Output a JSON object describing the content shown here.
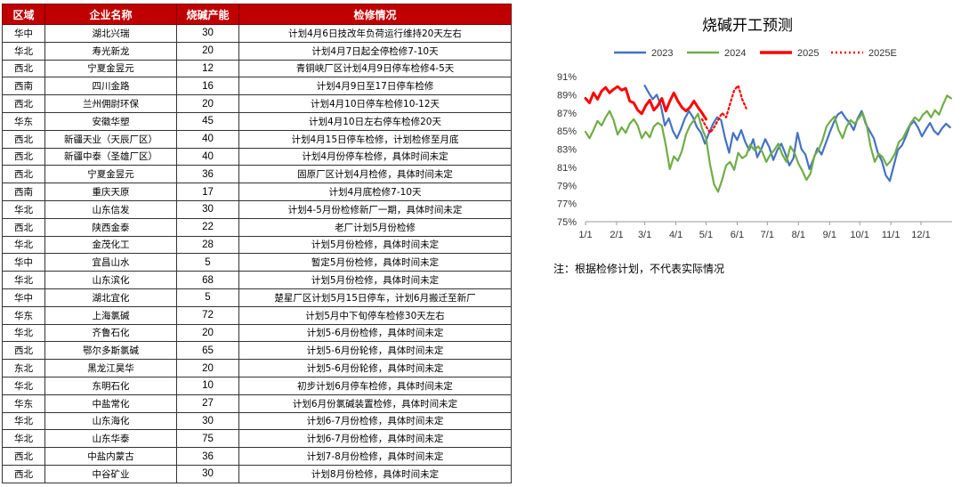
{
  "table": {
    "headers": [
      "区域",
      "企业名称",
      "烧碱产能",
      "检修情况"
    ],
    "rows": [
      [
        "华中",
        "湖北兴瑞",
        "30",
        "计划4月6日技改年负荷运行维持20天左右"
      ],
      [
        "华北",
        "寿光新龙",
        "20",
        "计划4月7日起全停检修7-10天"
      ],
      [
        "西北",
        "宁夏金昱元",
        "12",
        "青铜峡厂区计划4月9日停车检修4-5天"
      ],
      [
        "西南",
        "四川金路",
        "16",
        "计划4月9日至17日停车检修"
      ],
      [
        "西北",
        "兰州佣尉环保",
        "20",
        "计划4月10日停车检修10-12天"
      ],
      [
        "华东",
        "安徽华塑",
        "45",
        "计划4月10日左右停车检修20天"
      ],
      [
        "西北",
        "新疆天业（天辰厂区）",
        "40",
        "计划4月15日停车检修，计划检修至月底"
      ],
      [
        "西北",
        "新疆中泰（圣雄厂区）",
        "40",
        "计划4月份停车检修，具体时间未定"
      ],
      [
        "西北",
        "宁夏金昱元",
        "36",
        "固原厂区计划4月检修，具体时间未定"
      ],
      [
        "西南",
        "重庆天原",
        "17",
        "计划4月底检修7-10天"
      ],
      [
        "华北",
        "山东信发",
        "30",
        "计划4-5月份检修新厂一期，具体时间未定"
      ],
      [
        "西北",
        "陕西金泰",
        "22",
        "老厂计划5月份检修"
      ],
      [
        "华北",
        "金茂化工",
        "28",
        "计划5月份检修，具体时间未定"
      ],
      [
        "华中",
        "宜昌山水",
        "5",
        "暂定5月份检修，具体时间未定"
      ],
      [
        "华北",
        "山东滨化",
        "68",
        "计划5月份检修，具体时间未定"
      ],
      [
        "华中",
        "湖北宜化",
        "5",
        "楚星厂区计划5月15日停车，计划6月搬迁至新厂"
      ],
      [
        "华东",
        "上海氯碱",
        "72",
        "计划5月中下旬停车检修30天左右"
      ],
      [
        "华北",
        "齐鲁石化",
        "20",
        "计划5-6月份检修，具体时间未定"
      ],
      [
        "西北",
        "鄂尔多斯氯碱",
        "65",
        "计划5-6月份轮修，具体时间未定"
      ],
      [
        "东北",
        "黑龙江昊华",
        "20",
        "计划5-6月份轮修，具体时间未定"
      ],
      [
        "华北",
        "东明石化",
        "10",
        "初步计划6月停车检修，具体时间未定"
      ],
      [
        "华东",
        "中盐常化",
        "27",
        "计划6月份氯碱装置检修，具体时间未定"
      ],
      [
        "华北",
        "山东海化",
        "30",
        "计划6-7月份检修，具体时间未定"
      ],
      [
        "华北",
        "山东华泰",
        "75",
        "计划6-7月份检修，具体时间未定"
      ],
      [
        "西北",
        "中盐内蒙古",
        "36",
        "计划7-8月份检修，具体时间未定"
      ],
      [
        "西北",
        "中谷矿业",
        "30",
        "计划8月份检修，具体时间未定"
      ]
    ]
  },
  "note": "注：根据检修计划，不代表实际情况",
  "chart_data": {
    "type": "line",
    "title": "烧碱开工预测",
    "x_ticks": [
      "1/1",
      "2/1",
      "3/1",
      "4/1",
      "5/1",
      "6/1",
      "7/1",
      "8/1",
      "9/1",
      "10/1",
      "11/1",
      "12/1"
    ],
    "y_ticks": [
      "75%",
      "77%",
      "79%",
      "81%",
      "83%",
      "85%",
      "87%",
      "89%",
      "91%"
    ],
    "ylim": [
      75,
      91
    ],
    "x_unit": "day of year",
    "xlim": [
      1,
      366
    ],
    "legend_position": "top",
    "series": [
      {
        "name": "2023",
        "color": "#4472c4",
        "style": "solid",
        "x": [
          60,
          64,
          68,
          72,
          76,
          80,
          84,
          88,
          92,
          96,
          100,
          104,
          108,
          112,
          116,
          120,
          124,
          128,
          132,
          136,
          140,
          144,
          148,
          152,
          156,
          160,
          164,
          168,
          172,
          176,
          180,
          184,
          188,
          192,
          196,
          200,
          204,
          208,
          212,
          216,
          220,
          224,
          228,
          232,
          236,
          240,
          244,
          248,
          252,
          256,
          260,
          264,
          268,
          272,
          276,
          280,
          284,
          288,
          292,
          296,
          300,
          304,
          308,
          312,
          316,
          320,
          324,
          328,
          332,
          336,
          340,
          344,
          348,
          352,
          356,
          360,
          364
        ],
        "y": [
          90.0,
          89.2,
          88.5,
          89.0,
          87.8,
          85.6,
          86.4,
          85.0,
          84.2,
          85.2,
          86.4,
          87.2,
          86.5,
          85.4,
          84.8,
          83.6,
          84.8,
          85.8,
          86.5,
          86.2,
          84.2,
          82.6,
          84.8,
          84.0,
          85.1,
          83.8,
          82.9,
          84.1,
          82.1,
          83.0,
          84.1,
          83.2,
          81.8,
          82.9,
          83.6,
          82.5,
          81.2,
          82.0,
          84.8,
          83.0,
          82.4,
          80.8,
          81.9,
          83.1,
          82.4,
          83.6,
          84.8,
          85.9,
          86.8,
          87.1,
          86.4,
          85.9,
          85.1,
          86.4,
          87.2,
          85.8,
          85.0,
          84.2,
          82.6,
          81.7,
          80.1,
          79.5,
          81.2,
          82.9,
          83.4,
          84.4,
          85.6,
          86.1,
          85.4,
          84.4,
          85.2,
          85.9,
          85.0,
          84.6,
          85.3,
          85.8,
          85.4
        ]
      },
      {
        "name": "2024",
        "color": "#70ad47",
        "style": "solid",
        "x": [
          1,
          5,
          9,
          13,
          17,
          21,
          25,
          29,
          33,
          37,
          41,
          45,
          49,
          53,
          57,
          61,
          65,
          69,
          73,
          77,
          81,
          85,
          89,
          93,
          97,
          101,
          105,
          109,
          113,
          117,
          121,
          125,
          129,
          133,
          137,
          141,
          145,
          149,
          153,
          157,
          161,
          165,
          169,
          173,
          177,
          181,
          185,
          189,
          193,
          197,
          201,
          205,
          209,
          213,
          217,
          221,
          225,
          229,
          233,
          237,
          241,
          245,
          249,
          253,
          257,
          261,
          265,
          269,
          273,
          277,
          281,
          285,
          289,
          293,
          297,
          301,
          305,
          309,
          313,
          317,
          321,
          325,
          329,
          333,
          337,
          341,
          345,
          349,
          353,
          357,
          361,
          365
        ],
        "y": [
          84.9,
          84.2,
          85.1,
          86.1,
          85.6,
          86.5,
          87.2,
          86.2,
          84.6,
          85.4,
          84.8,
          85.8,
          86.3,
          85.6,
          84.2,
          84.9,
          84.3,
          85.5,
          85.9,
          85.6,
          83.4,
          80.8,
          82.2,
          81.7,
          82.8,
          84.6,
          85.6,
          86.2,
          86.9,
          85.3,
          84.2,
          81.3,
          79.1,
          78.3,
          79.6,
          81.2,
          81.6,
          80.7,
          82.6,
          82.0,
          82.3,
          83.5,
          82.9,
          83.3,
          82.7,
          81.6,
          82.4,
          82.9,
          83.6,
          82.4,
          81.6,
          83.3,
          82.6,
          81.4,
          80.6,
          79.6,
          80.3,
          82.3,
          82.9,
          84.0,
          85.5,
          86.1,
          86.6,
          85.1,
          84.2,
          85.5,
          86.2,
          85.8,
          86.4,
          87.0,
          85.6,
          83.2,
          81.6,
          82.5,
          82.1,
          81.2,
          81.7,
          82.5,
          83.8,
          84.2,
          85.1,
          85.9,
          86.5,
          86.1,
          86.8,
          87.2,
          86.5,
          87.3,
          86.8,
          87.9,
          88.9,
          88.6
        ]
      },
      {
        "name": "2025",
        "color": "#ff0000",
        "style": "solid",
        "x": [
          1,
          5,
          9,
          13,
          17,
          21,
          25,
          29,
          33,
          37,
          41,
          45,
          49,
          53,
          57,
          61,
          65,
          69,
          73,
          77,
          81,
          85,
          89,
          93,
          97,
          101,
          105,
          109,
          113,
          117,
          121
        ],
        "y": [
          88.6,
          88.1,
          89.2,
          88.5,
          89.4,
          89.8,
          89.2,
          89.6,
          89.9,
          89.5,
          89.7,
          88.3,
          88.1,
          87.3,
          86.9,
          87.8,
          88.4,
          87.3,
          87.8,
          88.6,
          87.2,
          88.3,
          89.2,
          88.3,
          87.6,
          87.2,
          87.6,
          88.3,
          87.6,
          87.0,
          86.3
        ]
      },
      {
        "name": "2025E",
        "color": "#ff0000",
        "style": "dotted",
        "x": [
          117,
          121,
          125,
          129,
          133,
          137,
          141,
          145,
          149,
          153,
          157,
          161
        ],
        "y": [
          86.3,
          85.5,
          84.8,
          85.4,
          86.2,
          87.0,
          86.5,
          88.0,
          89.5,
          90.0,
          88.5,
          87.5
        ]
      }
    ]
  }
}
